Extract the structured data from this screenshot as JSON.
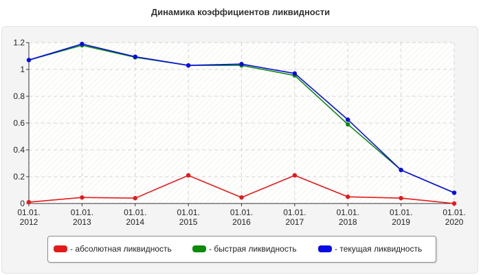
{
  "title": "Динамика коэффициентов ликвидности",
  "chart_data": {
    "type": "line",
    "categories": [
      [
        "01.01.",
        "2012"
      ],
      [
        "01.01.",
        "2013"
      ],
      [
        "01.01.",
        "2014"
      ],
      [
        "01.01.",
        "2015"
      ],
      [
        "01.01.",
        "2016"
      ],
      [
        "01.01.",
        "2017"
      ],
      [
        "01.01.",
        "2018"
      ],
      [
        "01.01.",
        "2019"
      ],
      [
        "01.01.",
        "2020"
      ]
    ],
    "ylim": [
      0,
      1.2
    ],
    "yticks": [
      "0",
      "0.2",
      "0.4",
      "0.6",
      "0.8",
      "1",
      "1.2"
    ],
    "grid": true,
    "legend_position": "bottom",
    "series": [
      {
        "name": "- абсолютная ликвидность",
        "color": "#e41a1a",
        "values": [
          0.01,
          0.045,
          0.04,
          0.21,
          0.045,
          0.21,
          0.05,
          0.04,
          0.0
        ]
      },
      {
        "name": "- быстрая ликвидность",
        "color": "#0b8a0b",
        "values": [
          1.07,
          1.18,
          1.09,
          1.03,
          1.03,
          0.955,
          0.59,
          0.25,
          0.08
        ]
      },
      {
        "name": "- текущая ликвидность",
        "color": "#0a0ae6",
        "values": [
          1.07,
          1.19,
          1.095,
          1.03,
          1.04,
          0.97,
          0.625,
          0.25,
          0.08
        ]
      }
    ]
  }
}
